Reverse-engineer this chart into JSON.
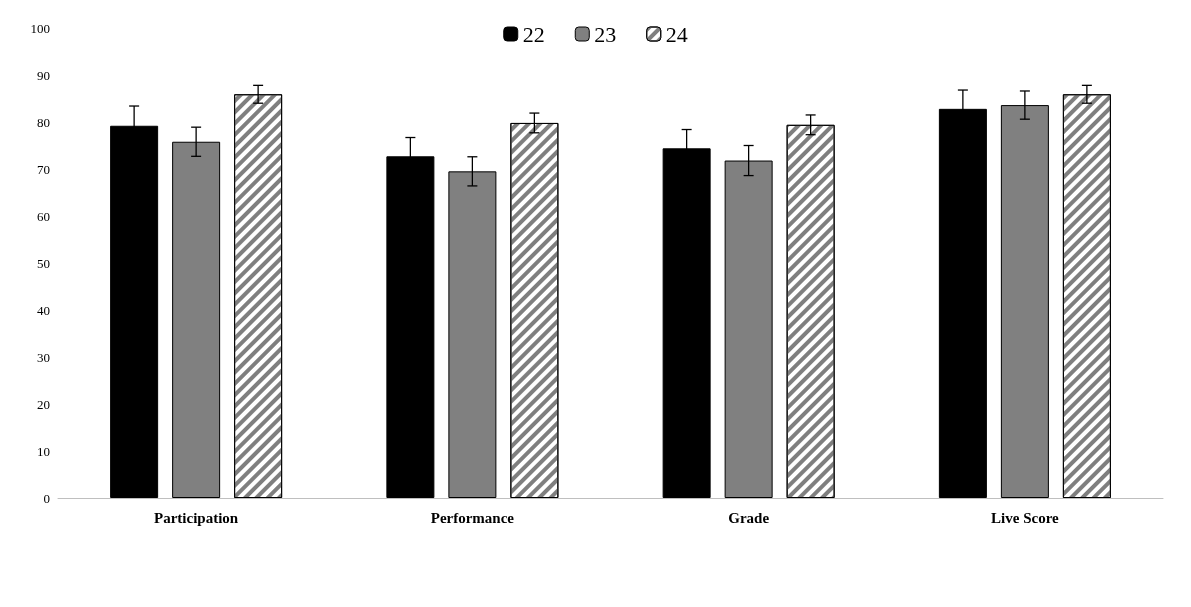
{
  "chart_data": {
    "type": "bar",
    "categories": [
      "Participation",
      "Performance",
      "Grade",
      "Live Score"
    ],
    "series": [
      {
        "name": "22",
        "color": "#000000",
        "values": [
          79.2,
          72.7,
          74.4,
          82.8
        ],
        "errors": [
          4.2,
          4,
          4,
          4
        ]
      },
      {
        "name": "23",
        "color": "#808080",
        "values": [
          75.8,
          69.5,
          71.8,
          83.6
        ],
        "errors": [
          3.1,
          3.1,
          3.2,
          3
        ]
      },
      {
        "name": "24",
        "color": "#ffffff",
        "values": [
          85.9,
          79.8,
          79.4,
          85.9
        ],
        "errors": [
          1.9,
          2.1,
          2.1,
          1.9
        ]
      }
    ],
    "ylim": [
      0,
      100
    ],
    "yticks": [
      0,
      10,
      20,
      30,
      40,
      50,
      60,
      70,
      80,
      90,
      100
    ],
    "grid": false,
    "legend": "top"
  }
}
